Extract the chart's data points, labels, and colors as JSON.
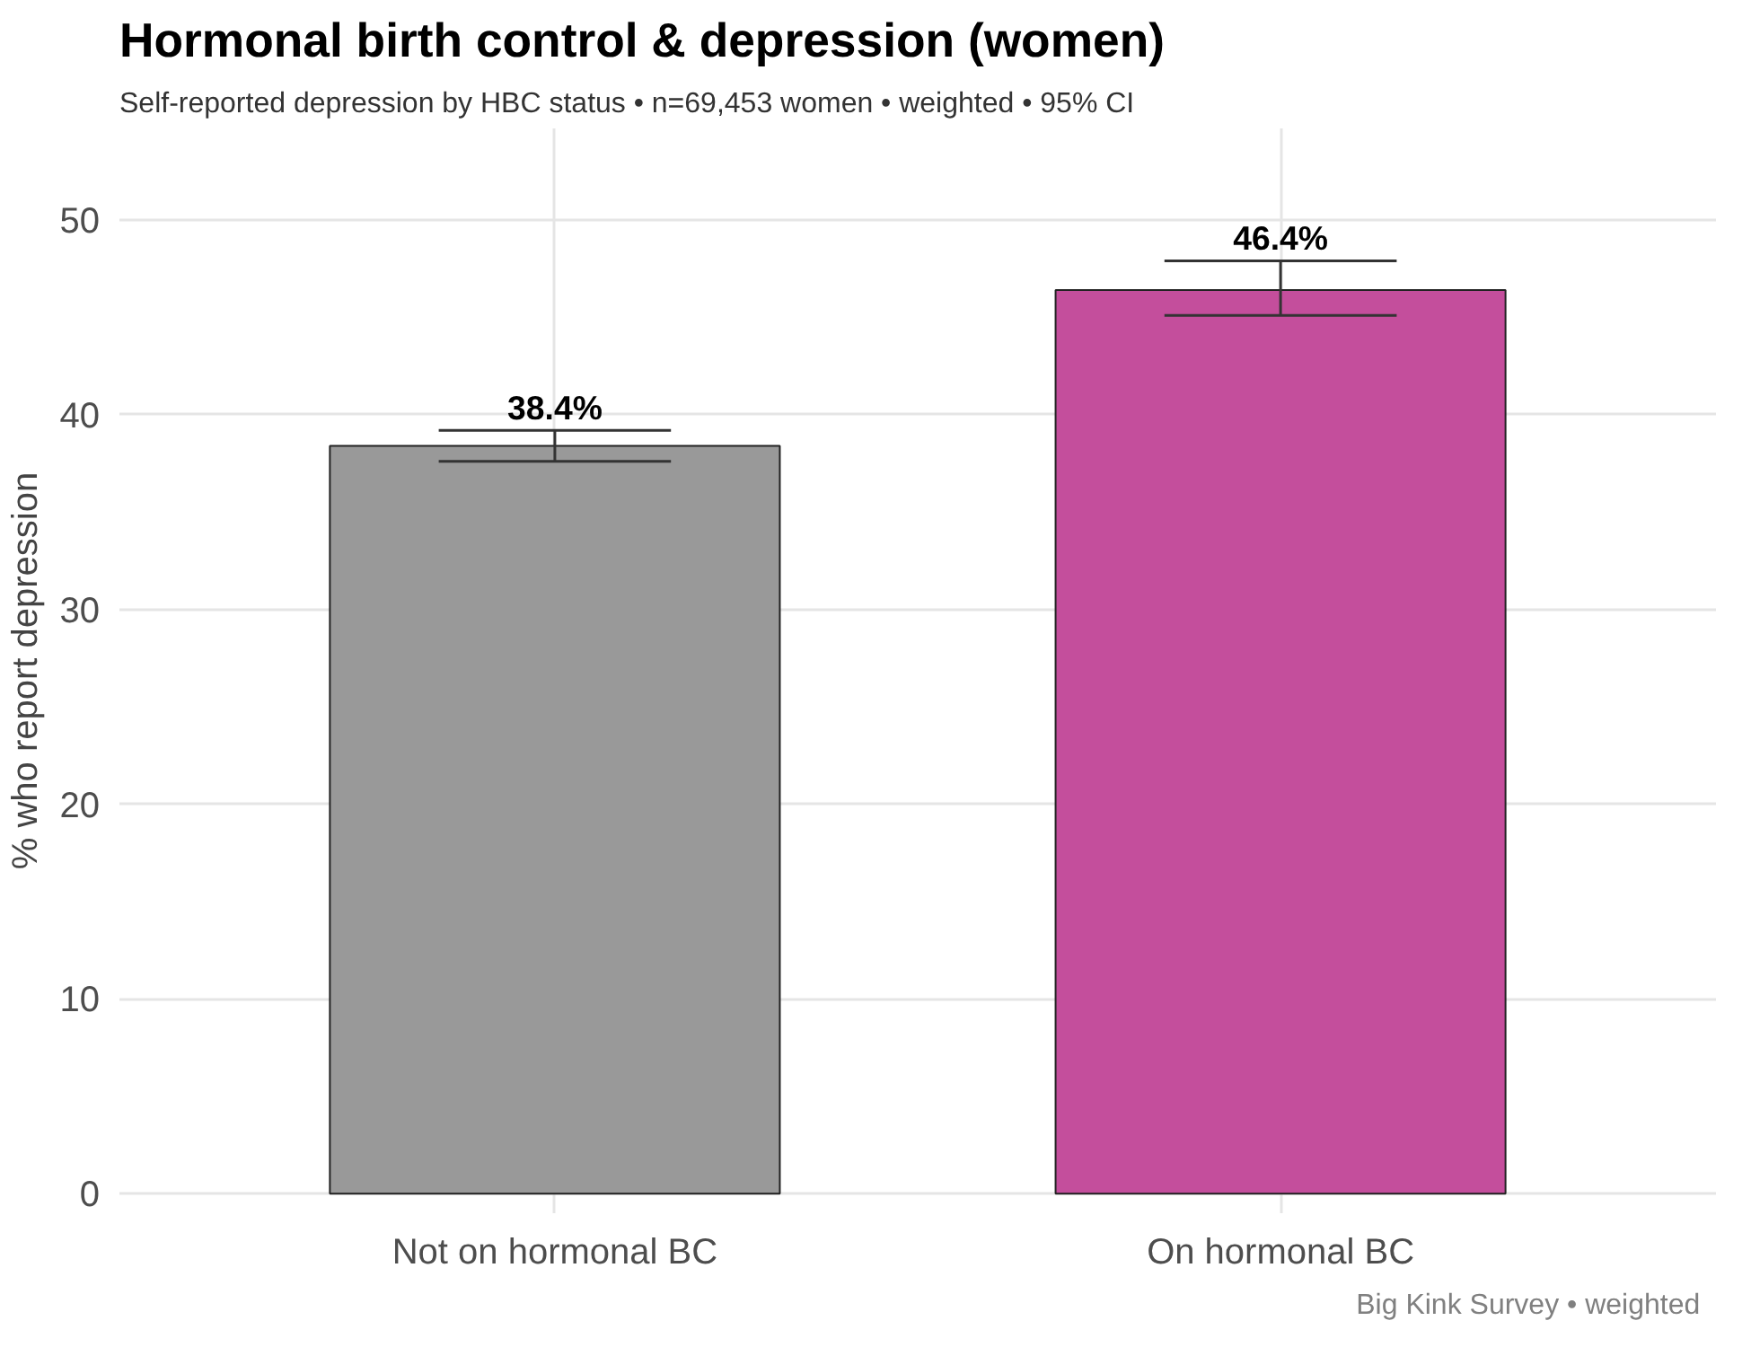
{
  "chart_data": {
    "type": "bar",
    "title": "Hormonal birth control & depression (women)",
    "subtitle": "Self-reported depression by HBC status  •  n=69,453 women  •  weighted  •  95% CI",
    "ylabel": "% who report depression",
    "categories": [
      "Not on hormonal BC",
      "On hormonal BC"
    ],
    "values": [
      38.4,
      46.4
    ],
    "colors": [
      "#999999",
      "#c44e9c"
    ],
    "errors": [
      [
        37.6,
        39.2
      ],
      [
        45.1,
        47.9
      ]
    ],
    "value_labels": [
      "38.4%",
      "46.4%"
    ],
    "ylim": [
      -1,
      54.7
    ],
    "yticks": [
      0,
      10,
      20,
      30,
      40,
      50
    ],
    "grid": true,
    "legend": false,
    "annotations": [
      "Big Kink Survey  •  weighted"
    ]
  }
}
